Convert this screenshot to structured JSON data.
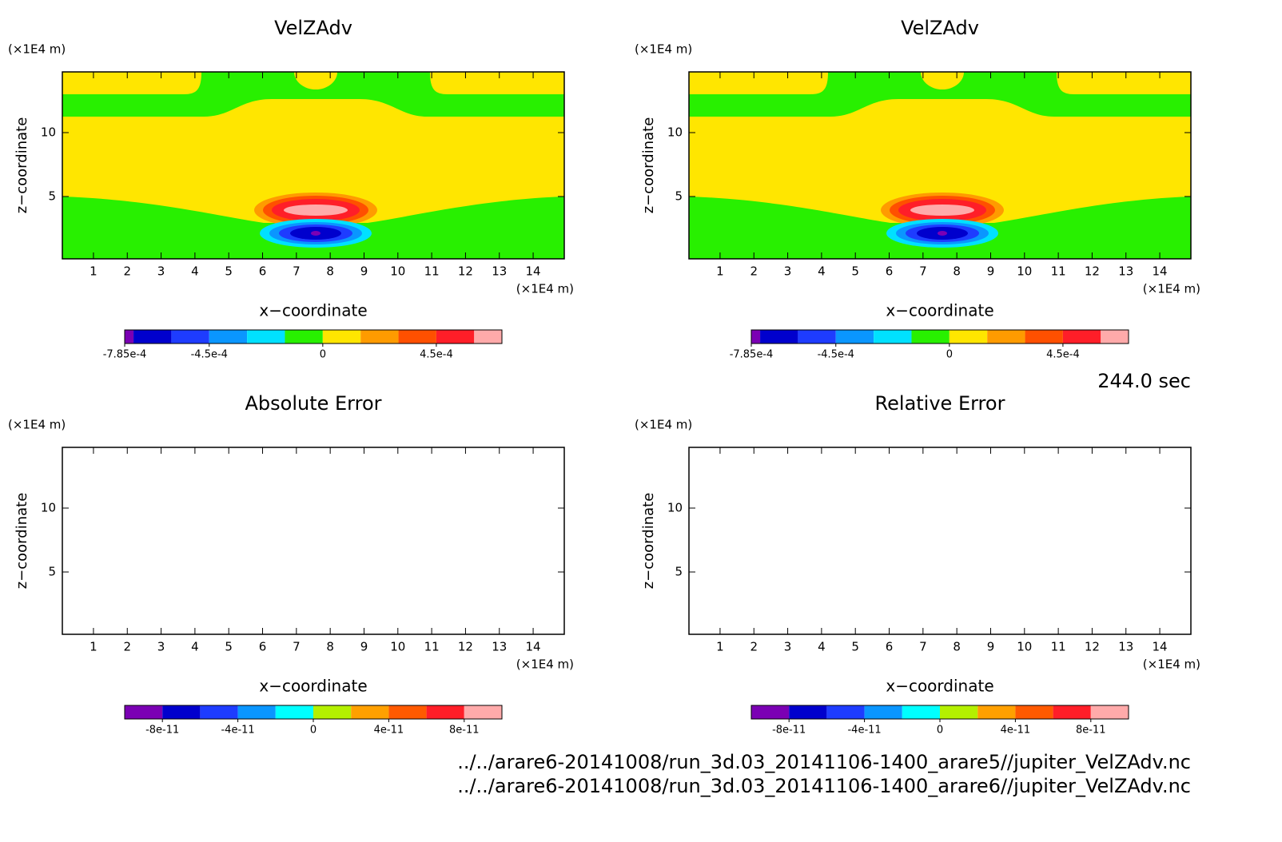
{
  "chart_data": [
    {
      "type": "contour",
      "title": "VelZAdv",
      "xlabel": "x−coordinate",
      "ylabel": "z−coordinate",
      "xunit": "(×1E4 m)",
      "yunit": "(×1E4 m)",
      "xlim": [
        0.08,
        14.92
      ],
      "ylim": [
        0.125,
        14.75
      ],
      "xticks": [
        1,
        2,
        3,
        4,
        5,
        6,
        7,
        8,
        9,
        10,
        11,
        12,
        13,
        14
      ],
      "yticks": [
        5,
        10
      ],
      "colorbar": {
        "levels": [
          -0.000785,
          -0.00075,
          -0.0006,
          -0.00045,
          -0.0003,
          -0.00015,
          0,
          0.00015,
          0.0003,
          0.00045,
          0.0006,
          0.00071
        ],
        "colors": [
          "#7b00b4",
          "#0000cd",
          "#1e3cff",
          "#0a96ff",
          "#00e1ff",
          "#28f000",
          "#ffe600",
          "#ff9b00",
          "#ff5000",
          "#ff1e28",
          "#ffaaaa"
        ],
        "ticks": [
          {
            "value": -0.000785,
            "label": "-7.85e-4"
          },
          {
            "value": -0.00045,
            "label": "-4.5e-4"
          },
          0,
          {
            "value": 0.00045,
            "label": "4.5e-4"
          }
        ]
      }
    },
    {
      "type": "contour",
      "title": "VelZAdv",
      "xlabel": "x−coordinate",
      "ylabel": "z−coordinate",
      "xunit": "(×1E4 m)",
      "yunit": "(×1E4 m)",
      "xlim": [
        0.08,
        14.92
      ],
      "ylim": [
        0.125,
        14.75
      ],
      "xticks": [
        1,
        2,
        3,
        4,
        5,
        6,
        7,
        8,
        9,
        10,
        11,
        12,
        13,
        14
      ],
      "yticks": [
        5,
        10
      ],
      "colorbar": {
        "levels": [
          -0.000785,
          -0.00075,
          -0.0006,
          -0.00045,
          -0.0003,
          -0.00015,
          0,
          0.00015,
          0.0003,
          0.00045,
          0.0006,
          0.00071
        ],
        "colors": [
          "#7b00b4",
          "#0000cd",
          "#1e3cff",
          "#0a96ff",
          "#00e1ff",
          "#28f000",
          "#ffe600",
          "#ff9b00",
          "#ff5000",
          "#ff1e28",
          "#ffaaaa"
        ],
        "ticks": [
          {
            "value": -0.000785,
            "label": "-7.85e-4"
          },
          {
            "value": -0.00045,
            "label": "-4.5e-4"
          },
          0,
          {
            "value": 0.00045,
            "label": "4.5e-4"
          }
        ]
      }
    },
    {
      "type": "contour",
      "title": "Absolute Error",
      "xlabel": "x−coordinate",
      "ylabel": "z−coordinate",
      "xunit": "(×1E4 m)",
      "yunit": "(×1E4 m)",
      "xlim": [
        0.08,
        14.92
      ],
      "ylim": [
        0.125,
        14.75
      ],
      "xticks": [
        1,
        2,
        3,
        4,
        5,
        6,
        7,
        8,
        9,
        10,
        11,
        12,
        13,
        14
      ],
      "yticks": [
        5,
        10
      ],
      "colorbar": {
        "levels": [
          -1e-10,
          -8e-11,
          -6e-11,
          -4e-11,
          -2e-11,
          0,
          2e-11,
          4e-11,
          6e-11,
          8e-11,
          1e-10
        ],
        "colors": [
          "#7b00b4",
          "#0000cd",
          "#1e3cff",
          "#0a96ff",
          "#00ffff",
          "#b4f000",
          "#ffa000",
          "#ff5a00",
          "#ff1e28",
          "#ffaaaa"
        ],
        "ticks": [
          {
            "value": -8e-11,
            "label": "-8e-11"
          },
          {
            "value": -4e-11,
            "label": "-4e-11"
          },
          0,
          {
            "value": 4e-11,
            "label": "4e-11"
          },
          {
            "value": 8e-11,
            "label": "8e-11"
          }
        ]
      }
    },
    {
      "type": "contour",
      "title": "Relative Error",
      "xlabel": "x−coordinate",
      "ylabel": "z−coordinate",
      "xunit": "(×1E4 m)",
      "yunit": "(×1E4 m)",
      "xlim": [
        0.08,
        14.92
      ],
      "ylim": [
        0.125,
        14.75
      ],
      "xticks": [
        1,
        2,
        3,
        4,
        5,
        6,
        7,
        8,
        9,
        10,
        11,
        12,
        13,
        14
      ],
      "yticks": [
        5,
        10
      ],
      "colorbar": {
        "levels": [
          -1e-10,
          -8e-11,
          -6e-11,
          -4e-11,
          -2e-11,
          0,
          2e-11,
          4e-11,
          6e-11,
          8e-11,
          1e-10
        ],
        "colors": [
          "#7b00b4",
          "#0000cd",
          "#1e3cff",
          "#0a96ff",
          "#00ffff",
          "#b4f000",
          "#ffa000",
          "#ff5a00",
          "#ff1e28",
          "#ffaaaa"
        ],
        "ticks": [
          {
            "value": -8e-11,
            "label": "-8e-11"
          },
          {
            "value": -4e-11,
            "label": "-4e-11"
          },
          0,
          {
            "value": 4e-11,
            "label": "4e-11"
          },
          {
            "value": 8e-11,
            "label": "8e-11"
          }
        ]
      }
    }
  ],
  "time_label": "244.0 sec",
  "files": [
    "../../arare6-20141008/run_3d.03_20141106-1400_arare5//jupiter_VelZAdv.nc",
    "../../arare6-20141008/run_3d.03_20141106-1400_arare6//jupiter_VelZAdv.nc"
  ]
}
